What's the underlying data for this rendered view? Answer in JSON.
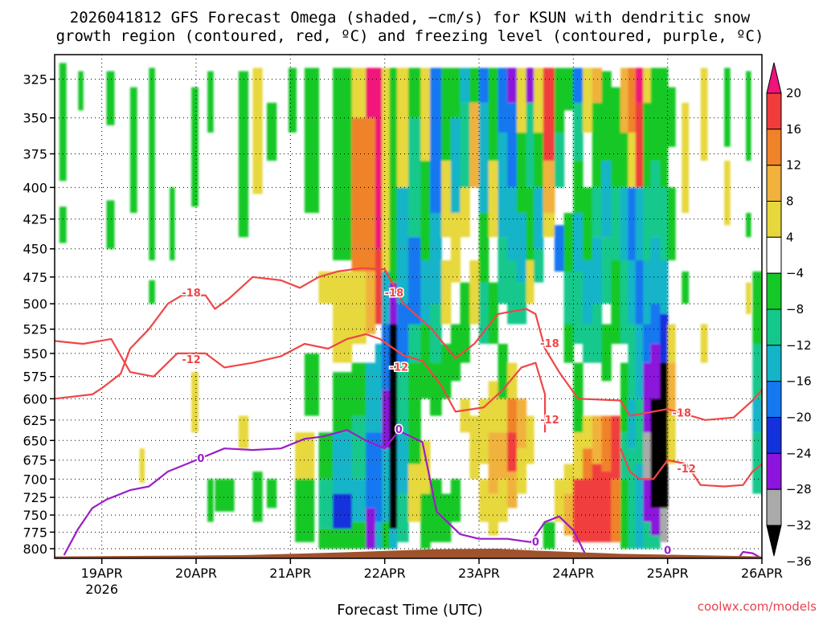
{
  "chart_data": {
    "type": "heatmap",
    "title_lines": [
      "2026041812 GFS Forecast Omega (shaded, −cm/s) for KSUN with dendritic snow",
      "growth region (contoured, red, ºC) and freezing level (contoured, purple, ºC)"
    ],
    "xlabel": "Forecast Time (UTC)",
    "ylabel": "",
    "x_ticks": [
      {
        "label": "19APR",
        "day": 19,
        "sub": "2026"
      },
      {
        "label": "20APR",
        "day": 20
      },
      {
        "label": "21APR",
        "day": 21
      },
      {
        "label": "22APR",
        "day": 22
      },
      {
        "label": "23APR",
        "day": 23
      },
      {
        "label": "24APR",
        "day": 24
      },
      {
        "label": "25APR",
        "day": 25
      },
      {
        "label": "26APR",
        "day": 26
      }
    ],
    "x_range": [
      18.5,
      26.0
    ],
    "y_ticks": [
      325,
      350,
      375,
      400,
      425,
      450,
      475,
      500,
      525,
      550,
      575,
      600,
      625,
      650,
      675,
      700,
      725,
      750,
      775,
      800
    ],
    "y_range": [
      310,
      815
    ],
    "y_scale": "log-pressure (inverted)",
    "grid": true,
    "colorbar": {
      "labels": [
        "20",
        "16",
        "12",
        "8",
        "4",
        "−4",
        "−8",
        "−12",
        "−16",
        "−20",
        "−24",
        "−28",
        "−32",
        "−36"
      ],
      "colors": [
        "#f0137a",
        "#f03c3c",
        "#f0822a",
        "#f0b23c",
        "#e6d83c",
        "#ffffff",
        "#14c828",
        "#14c88c",
        "#14b4c8",
        "#1478f0",
        "#1432dc",
        "#8c14dc",
        "#aaaaaa",
        "#000000"
      ]
    },
    "colors": {
      "dgz": "#f04646",
      "freezing": "#9a1ec8",
      "terrain": "#a0522d"
    },
    "contour_labels": [
      {
        "text": "-18",
        "kind": "dgz",
        "day": 19.95,
        "p": 490
      },
      {
        "text": "-12",
        "kind": "dgz",
        "day": 19.95,
        "p": 557
      },
      {
        "text": "-18",
        "kind": "dgz",
        "day": 22.1,
        "p": 490
      },
      {
        "text": "-12",
        "kind": "dgz",
        "day": 22.15,
        "p": 565
      },
      {
        "text": "-18",
        "kind": "dgz",
        "day": 23.75,
        "p": 540
      },
      {
        "text": "-12",
        "kind": "dgz",
        "day": 23.75,
        "p": 625
      },
      {
        "text": "-18",
        "kind": "dgz",
        "day": 25.15,
        "p": 617
      },
      {
        "text": "-12",
        "kind": "dgz",
        "day": 25.2,
        "p": 687
      },
      {
        "text": "0",
        "kind": "freezing",
        "day": 20.05,
        "p": 673
      },
      {
        "text": "0",
        "kind": "freezing",
        "day": 22.15,
        "p": 637
      },
      {
        "text": "0",
        "kind": "freezing",
        "day": 23.6,
        "p": 790
      },
      {
        "text": "0",
        "kind": "freezing",
        "day": 25.0,
        "p": 803
      }
    ],
    "dgz_minus18": [
      [
        18.5,
        600
      ],
      [
        18.9,
        595
      ],
      [
        19.0,
        588
      ],
      [
        19.2,
        572
      ],
      [
        19.3,
        545
      ],
      [
        19.5,
        525
      ],
      [
        19.7,
        500
      ],
      [
        19.85,
        492
      ],
      [
        20.1,
        492
      ],
      [
        20.2,
        505
      ],
      [
        20.35,
        495
      ],
      [
        20.6,
        475
      ],
      [
        20.9,
        478
      ],
      [
        21.1,
        485
      ],
      [
        21.3,
        475
      ],
      [
        21.5,
        470
      ],
      [
        21.75,
        467
      ],
      [
        22.0,
        468
      ],
      [
        22.2,
        500
      ],
      [
        22.5,
        525
      ],
      [
        22.75,
        555
      ],
      [
        22.95,
        540
      ],
      [
        23.2,
        510
      ],
      [
        23.5,
        505
      ],
      [
        23.6,
        510
      ],
      [
        23.7,
        545
      ],
      [
        23.85,
        570
      ],
      [
        24.05,
        600
      ],
      [
        24.5,
        602
      ],
      [
        24.6,
        620
      ],
      [
        25.0,
        612
      ],
      [
        25.4,
        625
      ],
      [
        25.7,
        622
      ],
      [
        25.9,
        602
      ],
      [
        26.0,
        590
      ]
    ],
    "dgz_minus12": [
      [
        18.5,
        537
      ],
      [
        18.8,
        540
      ],
      [
        19.1,
        535
      ],
      [
        19.3,
        570
      ],
      [
        19.55,
        575
      ],
      [
        19.8,
        550
      ],
      [
        20.1,
        550
      ],
      [
        20.3,
        565
      ],
      [
        20.6,
        560
      ],
      [
        20.9,
        553
      ],
      [
        21.15,
        540
      ],
      [
        21.4,
        545
      ],
      [
        21.6,
        535
      ],
      [
        21.8,
        530
      ],
      [
        21.95,
        535
      ],
      [
        22.2,
        552
      ],
      [
        22.4,
        558
      ],
      [
        22.6,
        585
      ],
      [
        22.75,
        615
      ],
      [
        23.05,
        610
      ],
      [
        23.25,
        590
      ],
      [
        23.45,
        565
      ],
      [
        23.6,
        560
      ],
      [
        23.7,
        595
      ],
      [
        23.7,
        640
      ]
    ],
    "dgz_minus12_b": [
      [
        24.5,
        660
      ],
      [
        24.6,
        690
      ],
      [
        24.7,
        700
      ],
      [
        24.85,
        700
      ],
      [
        25.0,
        675
      ],
      [
        25.2,
        680
      ],
      [
        25.35,
        708
      ],
      [
        25.6,
        710
      ],
      [
        25.8,
        708
      ],
      [
        25.9,
        690
      ],
      [
        26.0,
        680
      ]
    ],
    "freezing_0": [
      [
        18.6,
        810
      ],
      [
        18.75,
        770
      ],
      [
        18.9,
        740
      ],
      [
        19.05,
        728
      ],
      [
        19.3,
        715
      ],
      [
        19.5,
        710
      ],
      [
        19.7,
        690
      ],
      [
        19.9,
        680
      ],
      [
        20.1,
        670
      ],
      [
        20.3,
        660
      ],
      [
        20.6,
        662
      ],
      [
        20.9,
        660
      ],
      [
        21.15,
        648
      ],
      [
        21.35,
        645
      ],
      [
        21.6,
        637
      ],
      [
        21.8,
        650
      ],
      [
        22.0,
        660
      ],
      [
        22.15,
        638
      ],
      [
        22.4,
        652
      ],
      [
        22.55,
        745
      ],
      [
        22.8,
        778
      ],
      [
        23.0,
        785
      ],
      [
        23.3,
        785
      ],
      [
        23.55,
        790
      ],
      [
        23.7,
        760
      ],
      [
        23.85,
        752
      ],
      [
        24.0,
        772
      ],
      [
        24.15,
        815
      ]
    ],
    "freezing_0_b": [
      [
        25.75,
        815
      ],
      [
        25.8,
        805
      ],
      [
        25.9,
        807
      ],
      [
        26.0,
        815
      ]
    ],
    "terrain_top": [
      [
        18.5,
        812
      ],
      [
        20.5,
        810
      ],
      [
        21.5,
        806
      ],
      [
        22.5,
        801
      ],
      [
        23.2,
        800
      ],
      [
        23.6,
        803
      ],
      [
        24.5,
        808
      ],
      [
        26.0,
        812
      ]
    ]
  },
  "credit": "coolwx.com/models"
}
